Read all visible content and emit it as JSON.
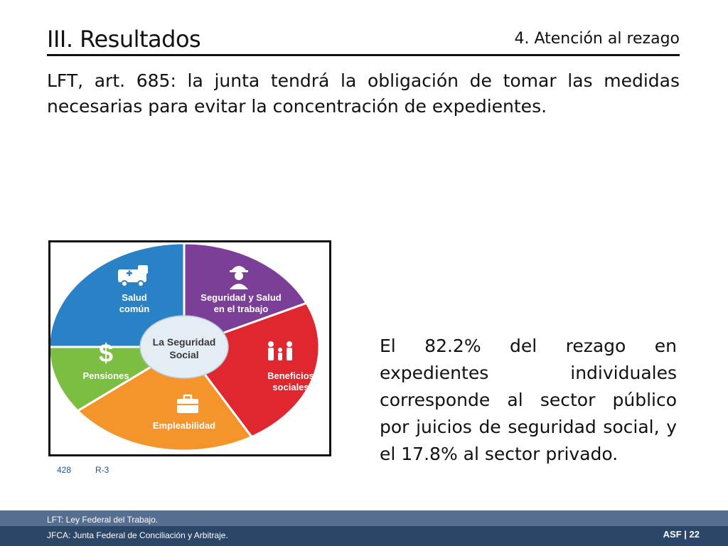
{
  "header": {
    "title": "III. Resultados",
    "subtitle": "4. Atención al rezago"
  },
  "intro_text": "LFT, art. 685: la junta tendrá la obligación de tomar las medidas necesarias para evitar la concentración de expedientes.",
  "diagram": {
    "center_line1": "La Seguridad",
    "center_line2": "Social",
    "segments": [
      {
        "line1": "Salud",
        "line2": "común",
        "color": "#2a82c6",
        "icon": "ambulance-icon"
      },
      {
        "line1": "Seguridad y Salud",
        "line2": "en el trabajo",
        "color": "#7b3f97",
        "icon": "worker-icon"
      },
      {
        "line1": "Beneficios",
        "line2": "sociales",
        "color": "#e0262f",
        "icon": "family-icon"
      },
      {
        "line1": "Empleabilidad",
        "line2": "",
        "color": "#f5942a",
        "icon": "briefcase-icon"
      },
      {
        "line1": "Pensiones",
        "line2": "",
        "color": "#7cbe42",
        "icon": "dollar-icon"
      }
    ]
  },
  "refs": {
    "number": "428",
    "code": "R-3"
  },
  "summary_text": "El 82.2% del rezago en expedientes individuales corresponde al sector público por juicios de seguridad social, y el 17.8% al sector privado.",
  "footer": {
    "note1": "LFT: Ley Federal del Trabajo.",
    "note2": "JFCA: Junta Federal de Conciliación y Arbitraje.",
    "brand": "ASF | 22"
  }
}
